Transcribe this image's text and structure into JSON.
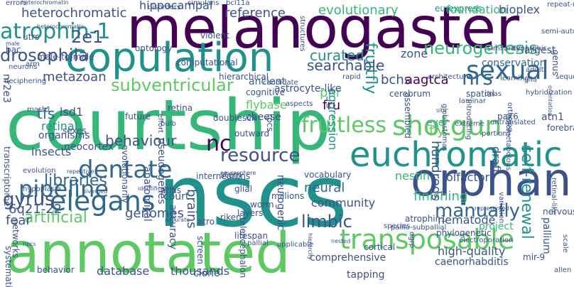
{
  "palette": {
    "dark_purple": "#440154",
    "indigo": "#3b528b",
    "blue": "#31688e",
    "teal": "#21918c",
    "green": "#35b779",
    "light_green": "#5ec962",
    "lime": "#90d743",
    "yellow": "#d4e21a"
  },
  "words": [
    {
      "text": "courtship",
      "color": "#35b779",
      "weight": 100
    },
    {
      "text": "nscs",
      "color": "#21918c",
      "weight": 96
    },
    {
      "text": "annotated",
      "color": "#5ec962",
      "weight": 90
    },
    {
      "text": "melanogaster",
      "color": "#440154",
      "weight": 88
    },
    {
      "text": "copulation",
      "color": "#21918c",
      "weight": 70
    },
    {
      "text": "orphan",
      "color": "#3b528b",
      "weight": 62
    },
    {
      "text": "euchromatic",
      "color": "#21918c",
      "weight": 55
    },
    {
      "text": "pipeline",
      "color": "#31688e",
      "weight": 45
    },
    {
      "text": "shotgun",
      "color": "#5ec962",
      "weight": 42
    },
    {
      "text": "transposable",
      "color": "#5ec962",
      "weight": 42
    },
    {
      "text": "elegans",
      "color": "#31688e",
      "weight": 40
    },
    {
      "text": "fruitless",
      "color": "#5ec962",
      "weight": 38
    },
    {
      "text": "dentate",
      "color": "#31688e",
      "weight": 36
    },
    {
      "text": "neurogenesis",
      "color": "#35b779",
      "weight": 34
    },
    {
      "text": "sexual",
      "color": "#31688e",
      "weight": 34
    },
    {
      "text": "atrophin-1",
      "color": "#21918c",
      "weight": 32
    },
    {
      "text": "drosophila",
      "color": "#3b528b",
      "weight": 30
    },
    {
      "text": "2e1",
      "color": "#3b528b",
      "weight": 30
    },
    {
      "text": "nrs",
      "color": "#31688e",
      "weight": 30
    },
    {
      "text": "resource",
      "color": "#3b528b",
      "weight": 26
    },
    {
      "text": "subventricular",
      "color": "#5ec962",
      "weight": 24
    },
    {
      "text": "gyrus",
      "color": "#3b528b",
      "weight": 24
    },
    {
      "text": "fruitfly",
      "color": "#21918c",
      "weight": 24
    },
    {
      "text": "limbic",
      "color": "#3b528b",
      "weight": 24
    },
    {
      "text": "behaviour",
      "color": "#3b528b",
      "weight": 22
    },
    {
      "text": "manually",
      "color": "#31688e",
      "weight": 22
    },
    {
      "text": "nc",
      "color": "#440154",
      "weight": 22
    },
    {
      "text": "heterochromatic",
      "color": "#3b528b",
      "weight": 20
    },
    {
      "text": "hippocampal",
      "color": "#3b528b",
      "weight": 18
    },
    {
      "text": "reference",
      "color": "#3b528b",
      "weight": 18
    },
    {
      "text": "evolutionary",
      "color": "#35b779",
      "weight": 18
    },
    {
      "text": "eurexpress",
      "color": "#21918c",
      "weight": 16
    },
    {
      "text": "foundation",
      "color": "#35b779",
      "weight": 16
    },
    {
      "text": "bioplex",
      "color": "#3b528b",
      "weight": 16
    },
    {
      "text": "zone",
      "color": "#3b528b",
      "weight": 16
    },
    {
      "text": "curated",
      "color": "#21918c",
      "weight": 16
    },
    {
      "text": "searchable",
      "color": "#3b528b",
      "weight": 16
    },
    {
      "text": "bchs",
      "color": "#3b528b",
      "weight": 16
    },
    {
      "text": "conservation",
      "color": "#31688e",
      "weight": 14
    },
    {
      "text": "aagtca",
      "color": "#440154",
      "weight": 16
    },
    {
      "text": "metazoan",
      "color": "#3b528b",
      "weight": 16
    },
    {
      "text": "ancient",
      "color": "#31688e",
      "weight": 16
    },
    {
      "text": "tfs",
      "color": "#31688e",
      "weight": 18
    },
    {
      "text": "lsd1",
      "color": "#3b528b",
      "weight": 16
    },
    {
      "text": "retinal",
      "color": "#21918c",
      "weight": 14
    },
    {
      "text": "organisms",
      "color": "#3b528b",
      "weight": 14
    },
    {
      "text": "insects",
      "color": "#3b528b",
      "weight": 16
    },
    {
      "text": "libraries",
      "color": "#31688e",
      "weight": 16
    },
    {
      "text": "artificial",
      "color": "#5ec962",
      "weight": 16
    },
    {
      "text": "genomes",
      "color": "#3b528b",
      "weight": 16
    },
    {
      "text": "brains",
      "color": "#3b528b",
      "weight": 16
    },
    {
      "text": "neural",
      "color": "#31688e",
      "weight": 16
    },
    {
      "text": "community",
      "color": "#3b528b",
      "weight": 16
    },
    {
      "text": "fear",
      "color": "#3b528b",
      "weight": 16
    },
    {
      "text": "6q21-22",
      "color": "#3b528b",
      "weight": 16
    },
    {
      "text": "neocortex",
      "color": "#3b528b",
      "weight": 14
    },
    {
      "text": "court",
      "color": "#3b528b",
      "weight": 14
    },
    {
      "text": "finishing",
      "color": "#35b779",
      "weight": 16
    },
    {
      "text": "nematode",
      "color": "#3b528b",
      "weight": 14
    },
    {
      "text": "olfactory",
      "color": "#3b528b",
      "weight": 14
    },
    {
      "text": "nestin",
      "color": "#35b779",
      "weight": 14
    },
    {
      "text": "self-renewal",
      "color": "#21918c",
      "weight": 16
    },
    {
      "text": "hundreds",
      "color": "#3b528b",
      "weight": 16
    },
    {
      "text": "fly",
      "color": "#5ec962",
      "weight": 16
    },
    {
      "text": "eye",
      "color": "#35b779",
      "weight": 14
    },
    {
      "text": "cheese",
      "color": "#3b528b",
      "weight": 12
    },
    {
      "text": "flybase",
      "color": "#5ec962",
      "weight": 14
    },
    {
      "text": "cognitive",
      "color": "#3b528b",
      "weight": 12
    },
    {
      "text": "pnr",
      "color": "#5ec962",
      "weight": 14
    },
    {
      "text": "fru",
      "color": "#440154",
      "weight": 14
    },
    {
      "text": "aggression",
      "color": "#21918c",
      "weight": 14
    },
    {
      "text": "cerebrum",
      "color": "#3b528b",
      "weight": 12
    },
    {
      "text": "assembled",
      "color": "#3b528b",
      "weight": 12
    },
    {
      "text": "draft",
      "color": "#3b528b",
      "weight": 12
    },
    {
      "text": "project",
      "color": "#35b779",
      "weight": 14
    },
    {
      "text": "atrophin1",
      "color": "#3b528b",
      "weight": 12
    },
    {
      "text": "phylogenetic",
      "color": "#3b528b",
      "weight": 12
    },
    {
      "text": "cortical",
      "color": "#3b528b",
      "weight": 12
    },
    {
      "text": "high-quality",
      "color": "#3b528b",
      "weight": 14
    },
    {
      "text": "caenorhabditis",
      "color": "#3b528b",
      "weight": 14
    },
    {
      "text": "comprehensive",
      "color": "#3b528b",
      "weight": 12
    },
    {
      "text": "thousands",
      "color": "#3b528b",
      "weight": 14
    },
    {
      "text": "database",
      "color": "#3b528b",
      "weight": 14
    },
    {
      "text": "behavior",
      "color": "#3b528b",
      "weight": 12
    },
    {
      "text": "pallium",
      "color": "#3b528b",
      "weight": 14
    },
    {
      "text": "mir-9",
      "color": "#3b528b",
      "weight": 12
    },
    {
      "text": "vocabulary",
      "color": "#3b528b",
      "weight": 12
    },
    {
      "text": "accuracy",
      "color": "#3b528b",
      "weight": 12
    },
    {
      "text": "neurogenic",
      "color": "#3b528b",
      "weight": 12
    },
    {
      "text": "anatomical",
      "color": "#3b528b",
      "weight": 12
    },
    {
      "text": "pseudogenes",
      "color": "#3b528b",
      "weight": 12
    },
    {
      "text": "evolutionarily",
      "color": "#3b528b",
      "weight": 12
    },
    {
      "text": "riken",
      "color": "#3b528b",
      "weight": 12
    },
    {
      "text": "sexes",
      "color": "#3b528b",
      "weight": 10
    },
    {
      "text": "nr2e3",
      "color": "#3b528b",
      "weight": 12
    },
    {
      "text": "genus",
      "color": "#3b528b",
      "weight": 10
    },
    {
      "text": "largest",
      "color": "#3b528b",
      "weight": 10
    },
    {
      "text": "utrs",
      "color": "#3b528b",
      "weight": 10
    },
    {
      "text": "bac",
      "color": "#3b528b",
      "weight": 10
    },
    {
      "text": "male-to-male",
      "color": "#3b528b",
      "weight": 8
    },
    {
      "text": "ontology",
      "color": "#3b528b",
      "weight": 8
    },
    {
      "text": "computational",
      "color": "#3b528b",
      "weight": 8
    },
    {
      "text": "hierarchical",
      "color": "#3b528b",
      "weight": 8
    },
    {
      "text": "astrocyte-like",
      "color": "#3b528b",
      "weight": 8
    },
    {
      "text": "future",
      "color": "#3b528b",
      "weight": 8
    },
    {
      "text": "retina",
      "color": "#3b528b",
      "weight": 8
    },
    {
      "text": "mash1",
      "color": "#3b528b",
      "weight": 8
    },
    {
      "text": "doublesex",
      "color": "#3b528b",
      "weight": 8
    },
    {
      "text": "rpcs",
      "color": "#3b528b",
      "weight": 8
    },
    {
      "text": "outward",
      "color": "#3b528b",
      "weight": 8
    },
    {
      "text": "interneurons",
      "color": "#3b528b",
      "weight": 8
    },
    {
      "text": "stem",
      "color": "#3b528b",
      "weight": 8
    },
    {
      "text": "neurosphere",
      "color": "#3b528b",
      "weight": 6
    },
    {
      "text": "glial",
      "color": "#3b528b",
      "weight": 8
    },
    {
      "text": "millions",
      "color": "#3b528b",
      "weight": 8
    },
    {
      "text": "worm",
      "color": "#3b528b",
      "weight": 8
    },
    {
      "text": "layers",
      "color": "#3b528b",
      "weight": 8
    },
    {
      "text": "screen",
      "color": "#3b528b",
      "weight": 8
    },
    {
      "text": "atro",
      "color": "#3b528b",
      "weight": 8
    },
    {
      "text": "lifespan",
      "color": "#3b528b",
      "weight": 8
    },
    {
      "text": "telencephalon",
      "color": "#3b528b",
      "weight": 8
    },
    {
      "text": "tapping",
      "color": "#3b528b",
      "weight": 8
    },
    {
      "text": "nervous",
      "color": "#3b528b",
      "weight": 8
    },
    {
      "text": "retinal-like",
      "color": "#3b528b",
      "weight": 6
    },
    {
      "text": "atlas",
      "color": "#3b528b",
      "weight": 8
    },
    {
      "text": "transcriptome",
      "color": "#3b528b",
      "weight": 8
    },
    {
      "text": "evolution",
      "color": "#3b528b",
      "weight": 8
    },
    {
      "text": "hypoplasia",
      "color": "#3b528b",
      "weight": 6
    },
    {
      "text": "networks",
      "color": "#3b528b",
      "weight": 8
    },
    {
      "text": "systematic",
      "color": "#3b528b",
      "weight": 8
    },
    {
      "text": "npcs",
      "color": "#3b528b",
      "weight": 6
    },
    {
      "text": "clone",
      "color": "#3b528b",
      "weight": 8
    },
    {
      "text": "heterochromatin",
      "color": "#3b528b",
      "weight": 6
    },
    {
      "text": "disorders",
      "color": "#3b528b",
      "weight": 6
    },
    {
      "text": "errors",
      "color": "#3b528b",
      "weight": 6
    },
    {
      "text": "simulans",
      "color": "#3b528b",
      "weight": 6
    },
    {
      "text": "violent",
      "color": "#3b528b",
      "weight": 6
    },
    {
      "text": "adult",
      "color": "#3b528b",
      "weight": 6
    },
    {
      "text": "glia",
      "color": "#3b528b",
      "weight": 6
    },
    {
      "text": "spatial",
      "color": "#3b528b",
      "weight": 6
    },
    {
      "text": "dnas",
      "color": "#3b528b",
      "weight": 6
    },
    {
      "text": "ortholog",
      "color": "#3b528b",
      "weight": 6
    },
    {
      "text": "pax6",
      "color": "#3b528b",
      "weight": 6
    },
    {
      "text": "atn1",
      "color": "#3b528b",
      "weight": 6
    },
    {
      "text": "forebrain-restricted",
      "color": "#3b528b",
      "weight": 6
    },
    {
      "text": "hybridization",
      "color": "#3b528b",
      "weight": 6
    },
    {
      "text": "untranslated",
      "color": "#3b528b",
      "weight": 6
    },
    {
      "text": "learning",
      "color": "#3b528b",
      "weight": 6
    },
    {
      "text": "sequenced",
      "color": "#3b528b",
      "weight": 6
    },
    {
      "text": "dimorphic",
      "color": "#3b528b",
      "weight": 6
    },
    {
      "text": "similarity",
      "color": "#3b528b",
      "weight": 6
    },
    {
      "text": "aspects",
      "color": "#3b528b",
      "weight": 6
    },
    {
      "text": "candidate",
      "color": "#3b528b",
      "weight": 6
    },
    {
      "text": "bulb",
      "color": "#3b528b",
      "weight": 6
    },
    {
      "text": "effort",
      "color": "#3b528b",
      "weight": 6
    },
    {
      "text": "repetitive",
      "color": "#3b528b",
      "weight": 6
    },
    {
      "text": "diverged",
      "color": "#3b528b",
      "weight": 6
    },
    {
      "text": "identification",
      "color": "#3b528b",
      "weight": 6
    },
    {
      "text": "accurate",
      "color": "#3b528b",
      "weight": 6
    },
    {
      "text": "applicable",
      "color": "#3b528b",
      "weight": 6
    },
    {
      "text": "pallio-subpallial",
      "color": "#3b528b",
      "weight": 6
    },
    {
      "text": "electroporation",
      "color": "#3b528b",
      "weight": 6
    },
    {
      "text": "variation",
      "color": "#3b528b",
      "weight": 6
    },
    {
      "text": "represented",
      "color": "#3b528b",
      "weight": 6
    },
    {
      "text": "species",
      "color": "#3b528b",
      "weight": 6
    },
    {
      "text": "dgrp",
      "color": "#3b528b",
      "weight": 6
    },
    {
      "text": "allen",
      "color": "#3b528b",
      "weight": 6
    },
    {
      "text": "scale",
      "color": "#3b528b",
      "weight": 6
    },
    {
      "text": "pallial",
      "color": "#3b528b",
      "weight": 6
    },
    {
      "text": "architecture",
      "color": "#3b528b",
      "weight": 6
    },
    {
      "text": "holometabolous",
      "color": "#3b528b",
      "weight": 6
    },
    {
      "text": "globlastomas",
      "color": "#3b528b",
      "weight": 6
    },
    {
      "text": "laminar",
      "color": "#3b528b",
      "weight": 6
    },
    {
      "text": "extreme",
      "color": "#3b528b",
      "weight": 6
    },
    {
      "text": "deciphering",
      "color": "#3b528b",
      "weight": 6
    },
    {
      "text": "neurons",
      "color": "#3b528b",
      "weight": 6
    },
    {
      "text": "arm",
      "color": "#3b528b",
      "weight": 6
    },
    {
      "text": "introducing",
      "color": "#3b528b",
      "weight": 6
    },
    {
      "text": "bcl11a",
      "color": "#3b528b",
      "weight": 6
    },
    {
      "text": "structures",
      "color": "#3b528b",
      "weight": 6
    },
    {
      "text": "rapid",
      "color": "#3b528b",
      "weight": 6
    },
    {
      "text": "portions",
      "color": "#3b528b",
      "weight": 6
    },
    {
      "text": "repeat-rich",
      "color": "#3b528b",
      "weight": 6
    },
    {
      "text": "semi-automated",
      "color": "#3b528b",
      "weight": 6
    },
    {
      "text": "heterochromatic",
      "color": "#3b528b",
      "weight": 6
    },
    {
      "text": "orientation",
      "color": "#3b528b",
      "weight": 6
    },
    {
      "text": "nested",
      "color": "#3b528b",
      "weight": 6
    },
    {
      "text": "male",
      "color": "#3b528b",
      "weight": 6
    },
    {
      "text": "situ",
      "color": "#3b528b",
      "weight": 6
    },
    {
      "text": "hierarchy",
      "color": "#3b528b",
      "weight": 6
    }
  ]
}
